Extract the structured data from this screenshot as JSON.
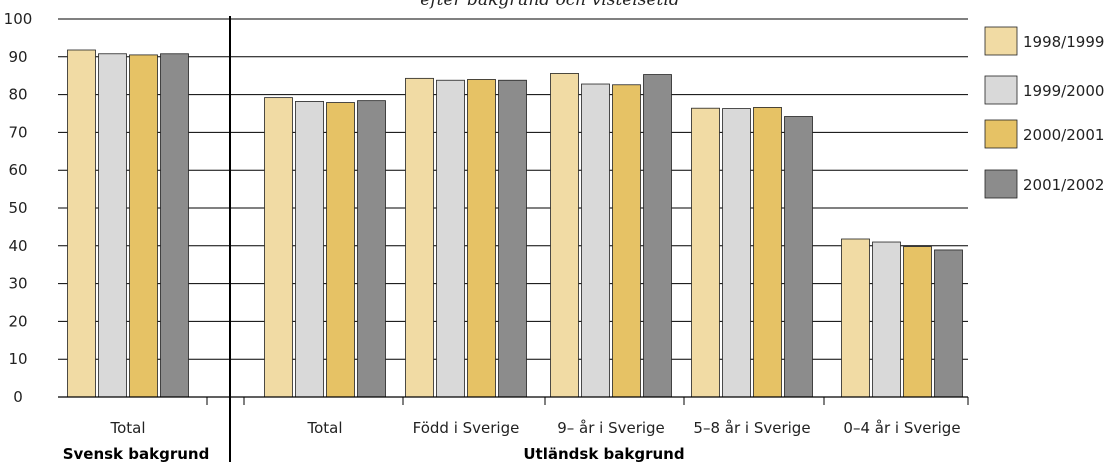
{
  "chart_data": {
    "type": "bar",
    "title_fragment": "efter bakgrund och vistelsetid",
    "ylim": [
      0,
      100
    ],
    "yticks": [
      "0",
      "10",
      "20",
      "30",
      "40",
      "50",
      "60",
      "70",
      "80",
      "90",
      "100"
    ],
    "grid": true,
    "legend_position": "right",
    "categories": [
      "Total",
      "Total",
      "Född i Sverige",
      "9– år i Sverige",
      "5–8 år i Sverige",
      "0–4 år i Sverige"
    ],
    "groups": [
      {
        "label": "Svensk bakgrund",
        "categories": [
          0
        ]
      },
      {
        "label": "Utländsk bakgrund",
        "categories": [
          1,
          2,
          3,
          4,
          5
        ]
      }
    ],
    "series": [
      {
        "name": "1998/1999",
        "color": "#f1dba4",
        "values": [
          91.8,
          79.2,
          84.3,
          85.6,
          76.4,
          41.8
        ]
      },
      {
        "name": "1999/2000",
        "color": "#d9d9d9",
        "values": [
          90.8,
          78.2,
          83.8,
          82.8,
          76.3,
          41.0
        ]
      },
      {
        "name": "2000/2001",
        "color": "#e6c265",
        "values": [
          90.5,
          77.9,
          84.0,
          82.6,
          76.6,
          39.8
        ]
      },
      {
        "name": "2001/2002",
        "color": "#8c8c8c",
        "values": [
          90.8,
          78.4,
          83.8,
          85.3,
          74.2,
          38.9
        ]
      }
    ]
  }
}
